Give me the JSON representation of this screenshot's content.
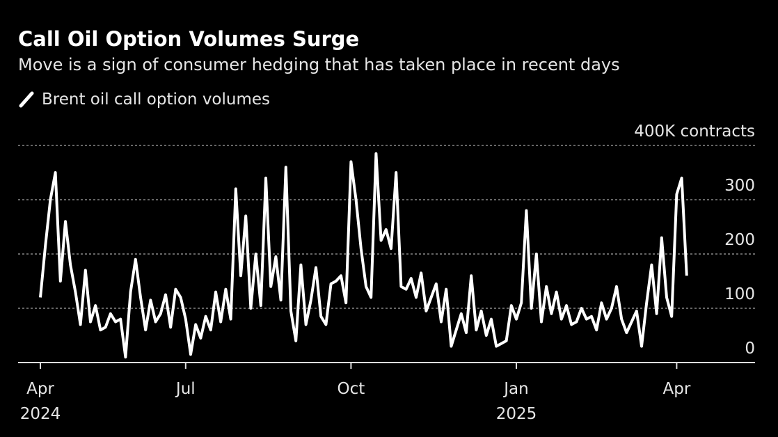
{
  "chart_data": {
    "type": "line",
    "title": "Call Oil Option Volumes Surge",
    "subtitle": "Move is a sign of consumer hedging that has taken place in recent days",
    "categories": [
      "Apr 2024",
      null,
      null,
      null,
      null,
      null,
      null,
      null,
      null,
      null,
      null,
      null,
      null,
      null,
      null,
      null,
      null,
      null,
      null,
      null,
      null,
      null,
      null,
      null,
      null,
      null,
      null,
      null,
      null,
      "Jul",
      null,
      null,
      null,
      null,
      null,
      null,
      null,
      null,
      null,
      null,
      null,
      null,
      null,
      null,
      null,
      null,
      null,
      null,
      null,
      null,
      null,
      null,
      null,
      null,
      null,
      null,
      null,
      null,
      null,
      null,
      null,
      null,
      "Oct",
      null,
      null,
      null,
      null,
      null,
      null,
      null,
      null,
      null,
      null,
      null,
      null,
      null,
      null,
      null,
      null,
      null,
      null,
      null,
      null,
      null,
      null,
      null,
      null,
      null,
      null,
      null,
      null,
      null,
      null,
      null,
      null,
      "Jan 2025",
      null,
      null,
      null,
      null,
      null,
      null,
      null,
      null,
      null,
      null,
      null,
      null,
      null,
      null,
      null,
      null,
      null,
      null,
      null,
      null,
      null,
      null,
      null,
      null,
      null,
      null,
      null,
      null,
      null,
      null,
      null,
      "Apr",
      null,
      null
    ],
    "series": [
      {
        "name": "Brent oil call option volumes",
        "color": "#ffffff",
        "values": [
          120,
          215,
          300,
          350,
          150,
          260,
          180,
          130,
          70,
          170,
          75,
          105,
          60,
          65,
          90,
          75,
          80,
          10,
          130,
          190,
          120,
          60,
          115,
          75,
          90,
          125,
          65,
          135,
          120,
          80,
          15,
          70,
          45,
          85,
          60,
          130,
          75,
          135,
          80,
          320,
          160,
          270,
          100,
          200,
          105,
          340,
          140,
          195,
          115,
          360,
          95,
          40,
          180,
          70,
          115,
          175,
          85,
          70,
          145,
          150,
          160,
          110,
          370,
          300,
          210,
          140,
          120,
          385,
          225,
          245,
          210,
          350,
          140,
          135,
          155,
          120,
          165,
          95,
          120,
          145,
          75,
          135,
          30,
          60,
          90,
          55,
          160,
          60,
          95,
          50,
          80,
          30,
          35,
          40,
          105,
          80,
          110,
          280,
          100,
          200,
          75,
          140,
          90,
          130,
          80,
          105,
          70,
          75,
          100,
          80,
          85,
          60,
          110,
          80,
          100,
          140,
          80,
          55,
          75,
          95,
          30,
          110,
          180,
          90,
          230,
          120,
          85,
          310,
          340,
          160
        ]
      }
    ],
    "ylim": [
      0,
      400
    ],
    "yticks": [
      0,
      100,
      200,
      300,
      {
        "value": 400,
        "label": "400K contracts"
      }
    ],
    "grid": true
  }
}
